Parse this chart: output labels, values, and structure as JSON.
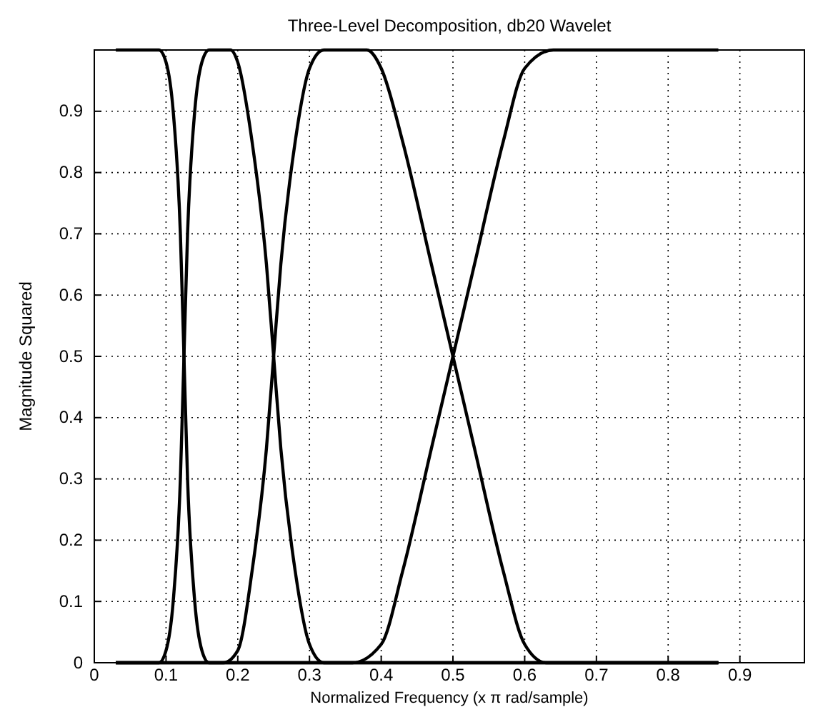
{
  "chart_data": {
    "type": "line",
    "title": "Three-Level Decomposition, db20 Wavelet",
    "xlabel": "Normalized Frequency (x π rad/sample)",
    "ylabel": "Magnitude Squared",
    "xlim": [
      0,
      0.99
    ],
    "ylim": [
      0,
      1
    ],
    "xticks": [
      0,
      0.1,
      0.2,
      0.3,
      0.4,
      0.5,
      0.6,
      0.7,
      0.8,
      0.9
    ],
    "yticks": [
      0,
      0.1,
      0.2,
      0.3,
      0.4,
      0.5,
      0.6,
      0.7,
      0.8,
      0.9
    ],
    "grid": true,
    "line_style": "solid",
    "marker": "none",
    "series": [
      {
        "color": "#000000",
        "x": [
          0.03,
          0.09,
          0.1,
          0.11,
          0.12,
          0.125,
          0.13,
          0.14,
          0.15,
          0.16,
          0.87
        ],
        "values": [
          1,
          1,
          0.98,
          0.9,
          0.7,
          0.5,
          0.3,
          0.1,
          0.02,
          0,
          0
        ]
      },
      {
        "color": "#000000",
        "x": [
          0.03,
          0.09,
          0.1,
          0.11,
          0.12,
          0.125,
          0.13,
          0.14,
          0.15,
          0.16,
          0.19,
          0.2,
          0.22,
          0.24,
          0.25,
          0.26,
          0.28,
          0.3,
          0.32,
          0.87
        ],
        "values": [
          0,
          0,
          0.02,
          0.1,
          0.3,
          0.5,
          0.7,
          0.9,
          0.98,
          1,
          1,
          0.98,
          0.85,
          0.65,
          0.5,
          0.35,
          0.15,
          0.03,
          0,
          0
        ]
      },
      {
        "color": "#000000",
        "x": [
          0.03,
          0.18,
          0.2,
          0.22,
          0.24,
          0.25,
          0.26,
          0.28,
          0.3,
          0.32,
          0.38,
          0.4,
          0.43,
          0.47,
          0.5,
          0.53,
          0.57,
          0.6,
          0.63,
          0.87
        ],
        "values": [
          0,
          0,
          0.02,
          0.15,
          0.35,
          0.5,
          0.65,
          0.85,
          0.97,
          1,
          1,
          0.97,
          0.85,
          0.65,
          0.5,
          0.35,
          0.15,
          0.03,
          0,
          0
        ]
      },
      {
        "color": "#000000",
        "x": [
          0.03,
          0.36,
          0.4,
          0.43,
          0.47,
          0.5,
          0.53,
          0.57,
          0.6,
          0.64,
          0.87
        ],
        "values": [
          0,
          0,
          0.03,
          0.15,
          0.35,
          0.5,
          0.65,
          0.85,
          0.97,
          1,
          1
        ]
      }
    ]
  }
}
